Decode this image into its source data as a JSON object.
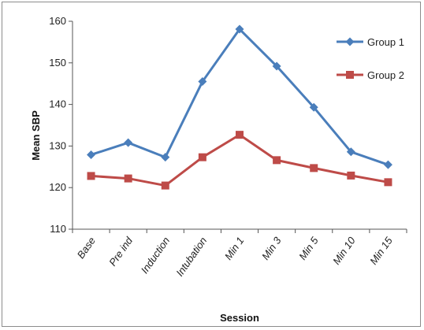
{
  "chart_data": {
    "type": "line",
    "xlabel": "Session",
    "ylabel": "Mean SBP",
    "ylim": [
      110,
      160
    ],
    "yticks": [
      110,
      120,
      130,
      140,
      150,
      160
    ],
    "grid": false,
    "legend_position": "top-right",
    "categories": [
      "Base",
      "Pre ind",
      "Induction",
      "Intubation",
      "Min 1",
      "Min 3",
      "Min 5",
      "Min 10",
      "Min 15"
    ],
    "series": [
      {
        "name": "Group 1",
        "color": "#4a7ebb",
        "marker": "diamond",
        "values": [
          127.9,
          130.8,
          127.3,
          145.5,
          158.1,
          149.2,
          139.3,
          128.6,
          125.5
        ]
      },
      {
        "name": "Group 2",
        "color": "#be4b48",
        "marker": "square",
        "values": [
          122.8,
          122.2,
          120.5,
          127.3,
          132.7,
          126.6,
          124.7,
          122.9,
          121.3
        ]
      }
    ]
  }
}
